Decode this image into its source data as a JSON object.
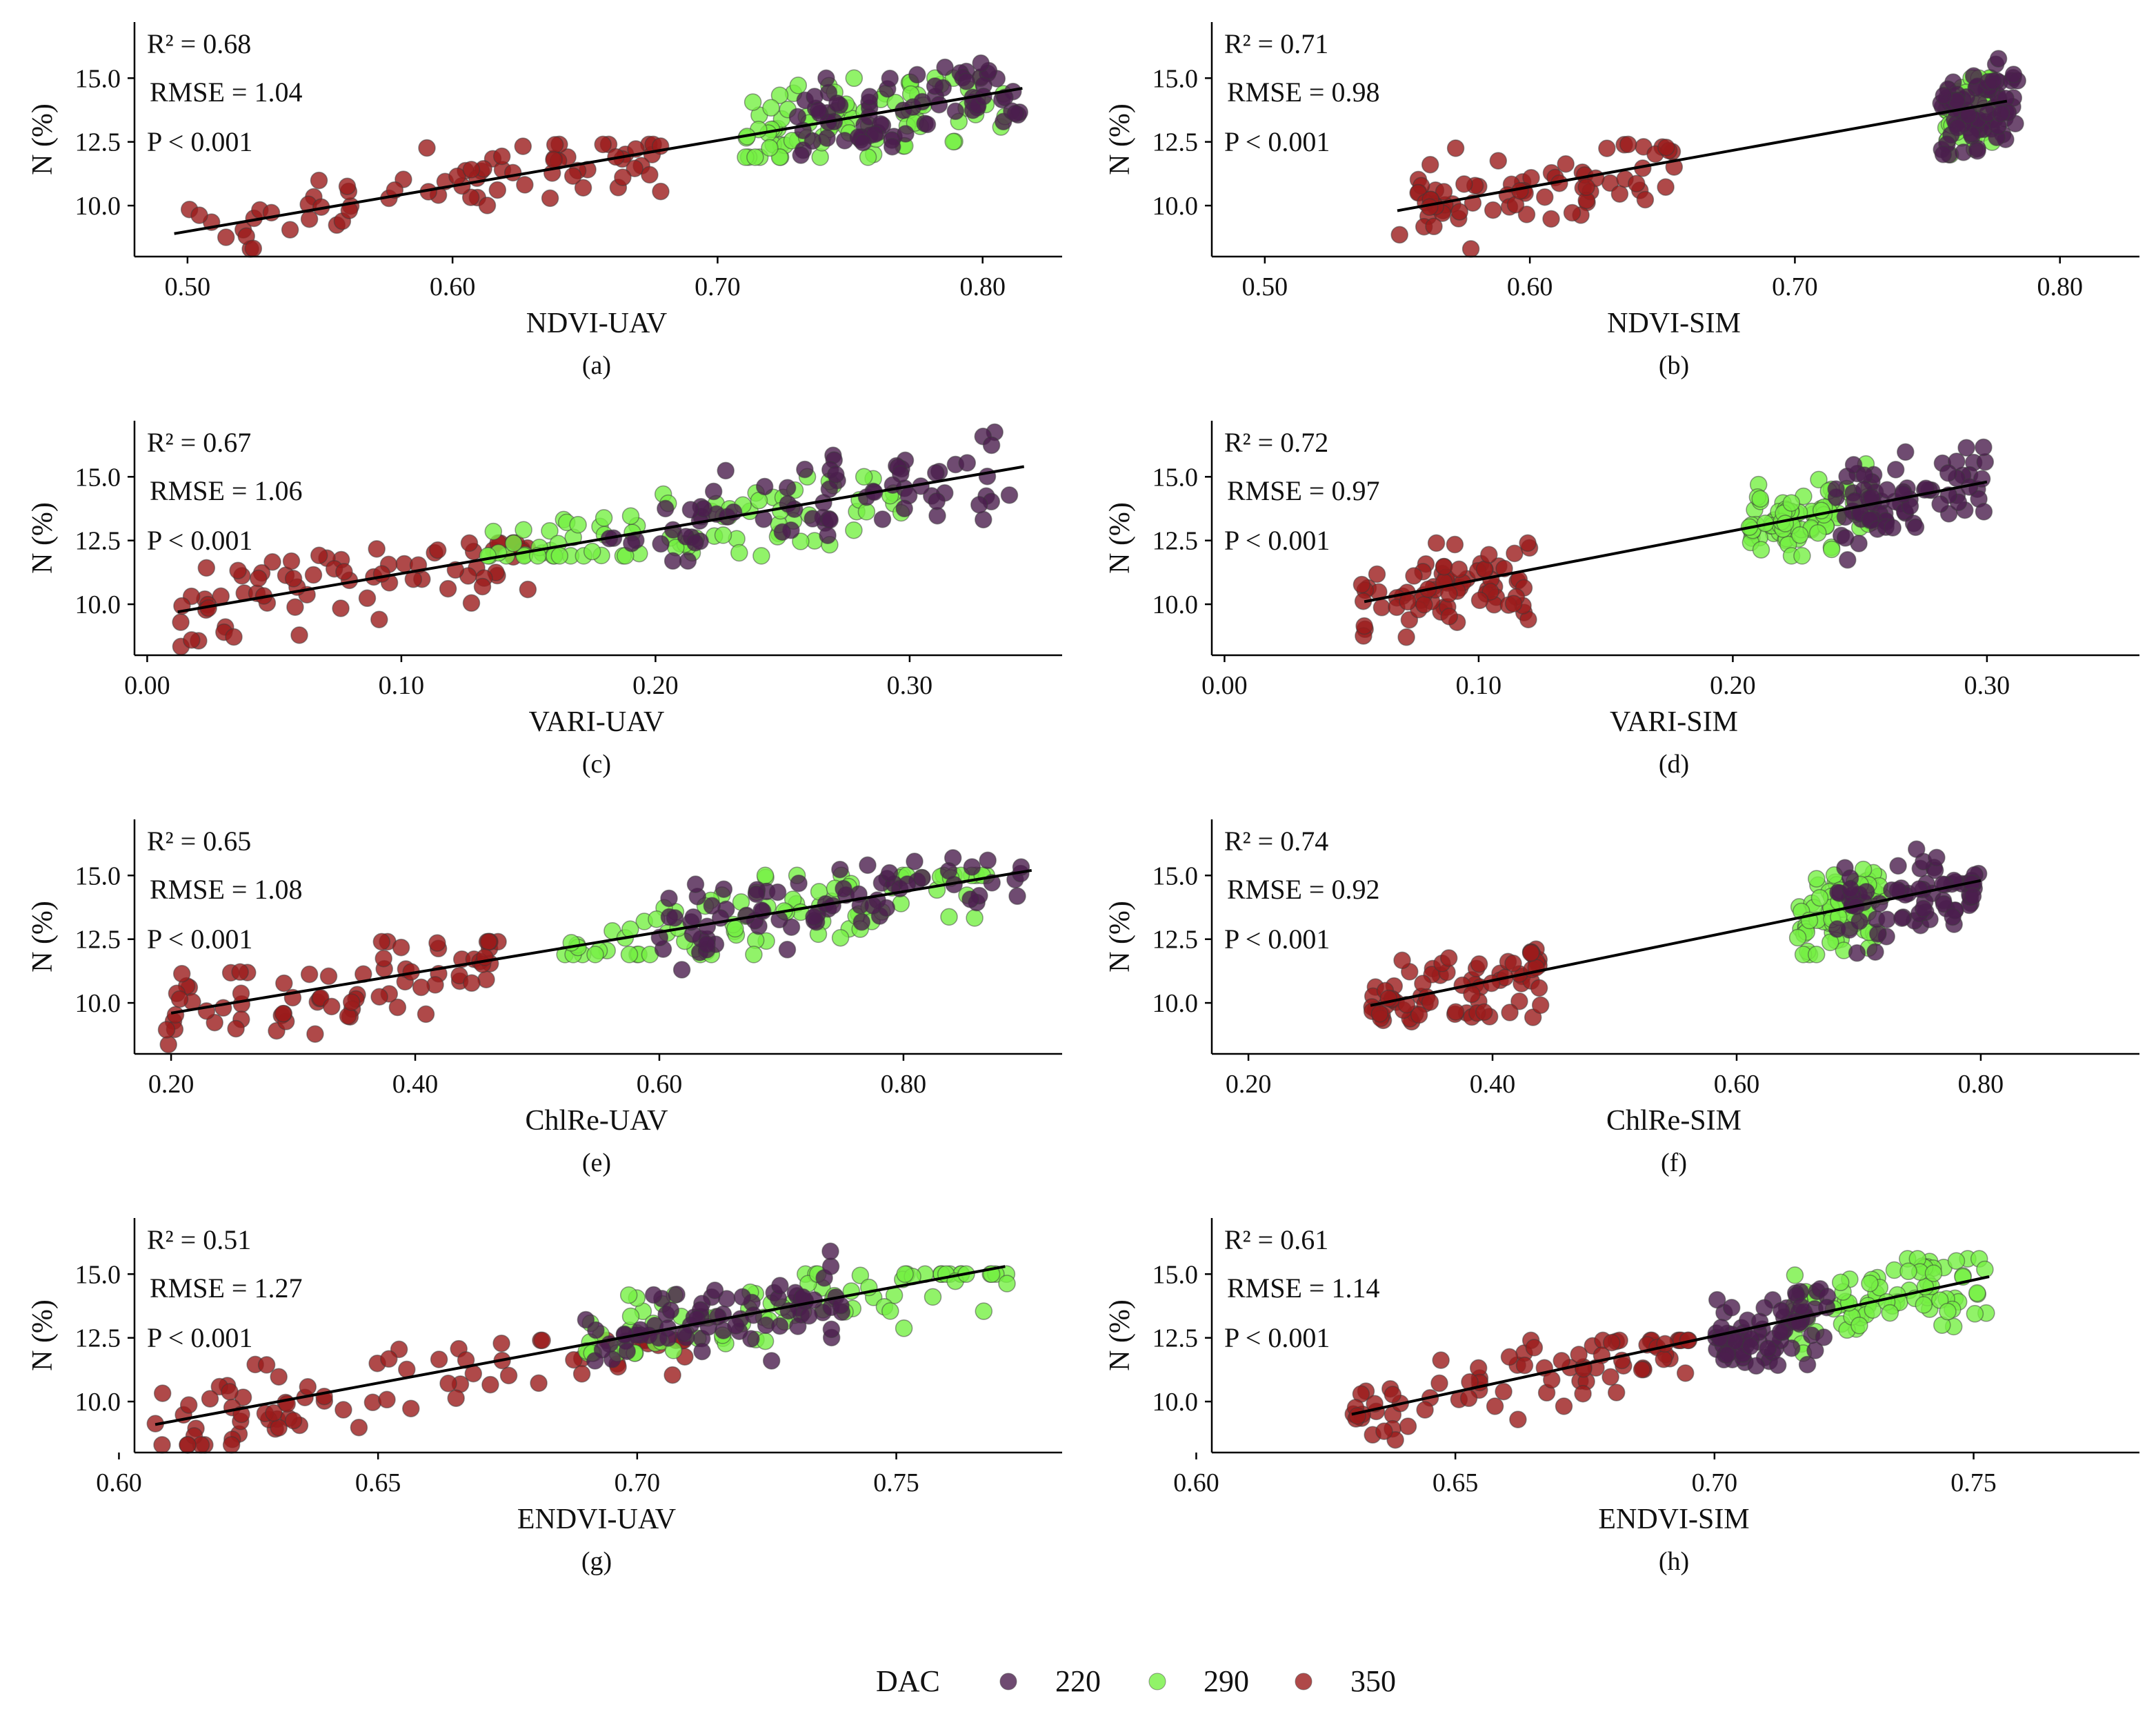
{
  "figure": {
    "legend": {
      "title": "DAC",
      "entries": [
        {
          "label": "220",
          "color": "#4b1e4d"
        },
        {
          "label": "290",
          "color": "#76f043"
        },
        {
          "label": "350",
          "color": "#9b1c1c"
        }
      ]
    }
  },
  "chart_data": [
    {
      "type": "scatter",
      "panel": "(a)",
      "xlabel": "NDVI-UAV",
      "ylabel": "N (%)",
      "xlim": [
        0.48,
        0.83
      ],
      "ylim": [
        8.0,
        17.2
      ],
      "xticks": [
        "0.50",
        "0.60",
        "0.70",
        "0.80"
      ],
      "yticks": [
        "10.0",
        "12.5",
        "15.0"
      ],
      "stats": {
        "r2": "R² = 0.68",
        "rmse": "RMSE = 1.04",
        "p": "P < 0.001"
      },
      "fit": {
        "x": [
          0.495,
          0.815
        ],
        "y": [
          8.9,
          14.6
        ]
      },
      "clusters": [
        {
          "group": "350",
          "x": [
            0.495,
            0.68
          ],
          "y": [
            8.3,
            12.4
          ],
          "n": 75,
          "seed": 11
        },
        {
          "group": "290",
          "x": [
            0.71,
            0.81
          ],
          "y": [
            11.9,
            15.0
          ],
          "n": 85,
          "seed": 12
        },
        {
          "group": "220",
          "x": [
            0.73,
            0.815
          ],
          "y": [
            11.7,
            16.8
          ],
          "n": 75,
          "seed": 13
        }
      ]
    },
    {
      "type": "scatter",
      "panel": "(b)",
      "xlabel": "NDVI-SIM",
      "ylabel": "N (%)",
      "xlim": [
        0.48,
        0.83
      ],
      "ylim": [
        8.0,
        17.2
      ],
      "xticks": [
        "0.50",
        "0.60",
        "0.70",
        "0.80"
      ],
      "yticks": [
        "10.0",
        "12.5",
        "15.0"
      ],
      "stats": {
        "r2": "R² = 0.71",
        "rmse": "RMSE = 0.98",
        "p": "P < 0.001"
      },
      "fit": {
        "x": [
          0.55,
          0.78
        ],
        "y": [
          9.8,
          14.1
        ]
      },
      "clusters": [
        {
          "group": "350",
          "x": [
            0.55,
            0.655
          ],
          "y": [
            8.3,
            12.4
          ],
          "n": 75,
          "seed": 21
        },
        {
          "group": "290",
          "x": [
            0.757,
            0.775
          ],
          "y": [
            12.0,
            15.0
          ],
          "n": 85,
          "seed": 22
        },
        {
          "group": "220",
          "x": [
            0.755,
            0.785
          ],
          "y": [
            11.7,
            16.8
          ],
          "n": 75,
          "seed": 23
        }
      ]
    },
    {
      "type": "scatter",
      "panel": "(c)",
      "xlabel": "VARI-UAV",
      "ylabel": "N (%)",
      "xlim": [
        -0.005,
        0.36
      ],
      "ylim": [
        8.0,
        17.2
      ],
      "xticks": [
        "0.00",
        "0.10",
        "0.20",
        "0.30"
      ],
      "yticks": [
        "10.0",
        "12.5",
        "15.0"
      ],
      "stats": {
        "r2": "R² = 0.67",
        "rmse": "RMSE = 1.06",
        "p": "P < 0.001"
      },
      "fit": {
        "x": [
          0.012,
          0.345
        ],
        "y": [
          9.7,
          15.4
        ]
      },
      "clusters": [
        {
          "group": "350",
          "x": [
            0.012,
            0.15
          ],
          "y": [
            8.3,
            12.4
          ],
          "n": 75,
          "seed": 31
        },
        {
          "group": "290",
          "x": [
            0.13,
            0.3
          ],
          "y": [
            11.9,
            15.0
          ],
          "n": 85,
          "seed": 32
        },
        {
          "group": "220",
          "x": [
            0.18,
            0.345
          ],
          "y": [
            11.7,
            16.8
          ],
          "n": 75,
          "seed": 33
        }
      ]
    },
    {
      "type": "scatter",
      "panel": "(d)",
      "xlabel": "VARI-SIM",
      "ylabel": "N (%)",
      "xlim": [
        -0.005,
        0.36
      ],
      "ylim": [
        8.0,
        17.2
      ],
      "xticks": [
        "0.00",
        "0.10",
        "0.20",
        "0.30"
      ],
      "yticks": [
        "10.0",
        "12.5",
        "15.0"
      ],
      "stats": {
        "r2": "R² = 0.72",
        "rmse": "RMSE = 0.97",
        "p": "P < 0.001"
      },
      "fit": {
        "x": [
          0.055,
          0.3
        ],
        "y": [
          10.1,
          14.8
        ]
      },
      "clusters": [
        {
          "group": "350",
          "x": [
            0.053,
            0.12
          ],
          "y": [
            8.3,
            12.4
          ],
          "n": 75,
          "seed": 41
        },
        {
          "group": "290",
          "x": [
            0.205,
            0.255
          ],
          "y": [
            11.9,
            15.5
          ],
          "n": 85,
          "seed": 42
        },
        {
          "group": "220",
          "x": [
            0.24,
            0.3
          ],
          "y": [
            11.3,
            16.8
          ],
          "n": 75,
          "seed": 43
        }
      ]
    },
    {
      "type": "scatter",
      "panel": "(e)",
      "xlabel": "ChlRe-UAV",
      "ylabel": "N (%)",
      "xlim": [
        0.17,
        0.93
      ],
      "ylim": [
        8.0,
        17.2
      ],
      "xticks": [
        "0.20",
        "0.40",
        "0.60",
        "0.80"
      ],
      "yticks": [
        "10.0",
        "12.5",
        "15.0"
      ],
      "stats": {
        "r2": "R² = 0.65",
        "rmse": "RMSE = 1.08",
        "p": "P < 0.001"
      },
      "fit": {
        "x": [
          0.2,
          0.905
        ],
        "y": [
          9.6,
          15.2
        ]
      },
      "clusters": [
        {
          "group": "350",
          "x": [
            0.195,
            0.47
          ],
          "y": [
            8.3,
            12.4
          ],
          "n": 75,
          "seed": 51
        },
        {
          "group": "290",
          "x": [
            0.51,
            0.87
          ],
          "y": [
            11.9,
            15.0
          ],
          "n": 85,
          "seed": 52
        },
        {
          "group": "220",
          "x": [
            0.6,
            0.905
          ],
          "y": [
            11.3,
            16.8
          ],
          "n": 75,
          "seed": 53
        }
      ]
    },
    {
      "type": "scatter",
      "panel": "(f)",
      "xlabel": "ChlRe-SIM",
      "ylabel": "N (%)",
      "xlim": [
        0.17,
        0.93
      ],
      "ylim": [
        8.0,
        17.2
      ],
      "xticks": [
        "0.20",
        "0.40",
        "0.60",
        "0.80"
      ],
      "yticks": [
        "10.0",
        "12.5",
        "15.0"
      ],
      "stats": {
        "r2": "R² = 0.74",
        "rmse": "RMSE = 0.92",
        "p": "P < 0.001"
      },
      "fit": {
        "x": [
          0.3,
          0.8
        ],
        "y": [
          9.9,
          14.8
        ]
      },
      "clusters": [
        {
          "group": "350",
          "x": [
            0.3,
            0.44
          ],
          "y": [
            8.3,
            12.4
          ],
          "n": 75,
          "seed": 61
        },
        {
          "group": "290",
          "x": [
            0.65,
            0.72
          ],
          "y": [
            11.9,
            15.5
          ],
          "n": 85,
          "seed": 62
        },
        {
          "group": "220",
          "x": [
            0.68,
            0.8
          ],
          "y": [
            11.3,
            16.8
          ],
          "n": 75,
          "seed": 63
        }
      ]
    },
    {
      "type": "scatter",
      "panel": "(g)",
      "xlabel": "ENDVI-UAV",
      "ylabel": "N (%)",
      "xlim": [
        0.603,
        0.782
      ],
      "ylim": [
        8.0,
        17.2
      ],
      "xticks": [
        "0.60",
        "0.65",
        "0.70",
        "0.75"
      ],
      "yticks": [
        "10.0",
        "12.5",
        "15.0"
      ],
      "stats": {
        "r2": "R² = 0.51",
        "rmse": "RMSE = 1.27",
        "p": "P < 0.001"
      },
      "fit": {
        "x": [
          0.607,
          0.771
        ],
        "y": [
          9.1,
          15.3
        ]
      },
      "clusters": [
        {
          "group": "350",
          "x": [
            0.607,
            0.71
          ],
          "y": [
            8.3,
            12.4
          ],
          "n": 80,
          "seed": 71
        },
        {
          "group": "290",
          "x": [
            0.69,
            0.772
          ],
          "y": [
            11.9,
            15.0
          ],
          "n": 85,
          "seed": 72
        },
        {
          "group": "220",
          "x": [
            0.69,
            0.74
          ],
          "y": [
            11.6,
            16.8
          ],
          "n": 75,
          "seed": 73
        }
      ]
    },
    {
      "type": "scatter",
      "panel": "(h)",
      "xlabel": "ENDVI-SIM",
      "ylabel": "N (%)",
      "xlim": [
        0.603,
        0.782
      ],
      "ylim": [
        8.0,
        17.2
      ],
      "xticks": [
        "0.60",
        "0.65",
        "0.70",
        "0.75"
      ],
      "yticks": [
        "10.0",
        "12.5",
        "15.0"
      ],
      "stats": {
        "r2": "R² = 0.61",
        "rmse": "RMSE = 1.14",
        "p": "P < 0.001"
      },
      "fit": {
        "x": [
          0.63,
          0.753
        ],
        "y": [
          9.5,
          14.9
        ]
      },
      "clusters": [
        {
          "group": "350",
          "x": [
            0.63,
            0.695
          ],
          "y": [
            8.3,
            12.4
          ],
          "n": 80,
          "seed": 81
        },
        {
          "group": "290",
          "x": [
            0.715,
            0.753
          ],
          "y": [
            11.9,
            15.6
          ],
          "n": 85,
          "seed": 82
        },
        {
          "group": "220",
          "x": [
            0.7,
            0.722
          ],
          "y": [
            11.3,
            16.8
          ],
          "n": 75,
          "seed": 83
        }
      ]
    }
  ]
}
